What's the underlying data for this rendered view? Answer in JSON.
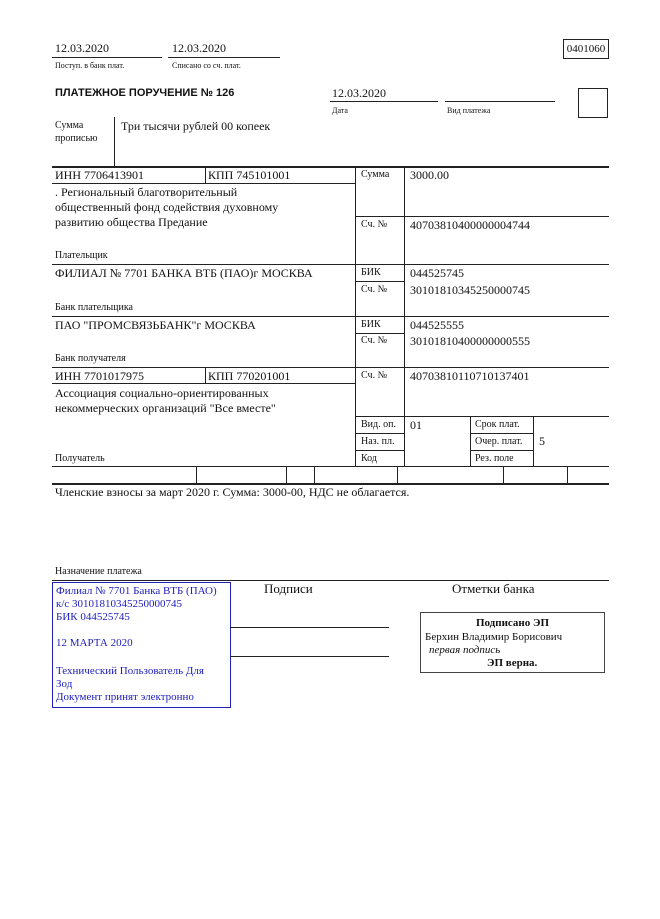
{
  "header": {
    "received_date": "12.03.2020",
    "received_label": "Поступ. в банк плат.",
    "debited_date": "12.03.2020",
    "debited_label": "Списано со сч. плат.",
    "form_code": "0401060"
  },
  "title": "ПЛАТЕЖНОЕ ПОРУЧЕНИЕ № 126",
  "date": {
    "value": "12.03.2020",
    "label": "Дата"
  },
  "payment_type": {
    "value": "",
    "label": "Вид платежа"
  },
  "amount_words": {
    "label_line1": "Сумма",
    "label_line2": "прописью",
    "value": "Три тысячи рублей 00 копеек"
  },
  "payer": {
    "inn": "ИНН 7706413901",
    "kpp": "КПП 745101001",
    "name_lines": [
      ". Региональный благотворительный",
      "общественный фонд содействия духовному",
      "развитию общества Предание"
    ],
    "label": "Плательщик",
    "amount_label": "Сумма",
    "amount": "3000.00",
    "account_label": "Сч. №",
    "account": "40703810400000004744"
  },
  "payer_bank": {
    "name": "ФИЛИАЛ № 7701 БАНКА ВТБ (ПАО)г МОСКВА",
    "label": "Банк плательщика",
    "bik_label": "БИК",
    "bik": "044525745",
    "account_label": "Сч. №",
    "account": "30101810345250000745"
  },
  "payee_bank": {
    "name": "ПАО \"ПРОМСВЯЗЬБАНК\"г МОСКВА",
    "label": "Банк получателя",
    "bik_label": "БИК",
    "bik": "044525555",
    "account_label": "Сч. №",
    "account": "30101810400000000555"
  },
  "payee": {
    "inn": "ИНН 7701017975",
    "kpp": "КПП 770201001",
    "name_lines": [
      "Ассоциация социально-ориентированных",
      "некоммерческих организаций \"Все вместе\""
    ],
    "label": "Получатель",
    "account_label": "Сч. №",
    "account": "40703810110710137401"
  },
  "codes": {
    "op_type_label": "Вид. оп.",
    "op_type": "01",
    "purpose_label": "Наз. пл.",
    "code_label": "Код",
    "due_label": "Срок плат.",
    "priority_label": "Очер. плат.",
    "priority": "5",
    "reserve_label": "Рез. поле"
  },
  "purpose": {
    "text": "Членские взносы за март 2020 г. Сумма: 3000-00, НДС не облагается.",
    "label": "Назначение платежа"
  },
  "stamp": {
    "lines": [
      "Филиал № 7701 Банка ВТБ (ПАО)",
      "к/с 30101810345250000745",
      "БИК 044525745",
      "",
      "12 МАРТА 2020",
      "",
      "Технический Пользователь Для",
      "Зод",
      "Документ принят электронно"
    ],
    "color": "#2020c0"
  },
  "signatures_label": "Подписи",
  "bank_marks": {
    "label": "Отметки банка",
    "signed": "Подписано ЭП",
    "signer": "Берхин Владимир Борисович",
    "role": "первая подпись",
    "verified": "ЭП верна."
  }
}
